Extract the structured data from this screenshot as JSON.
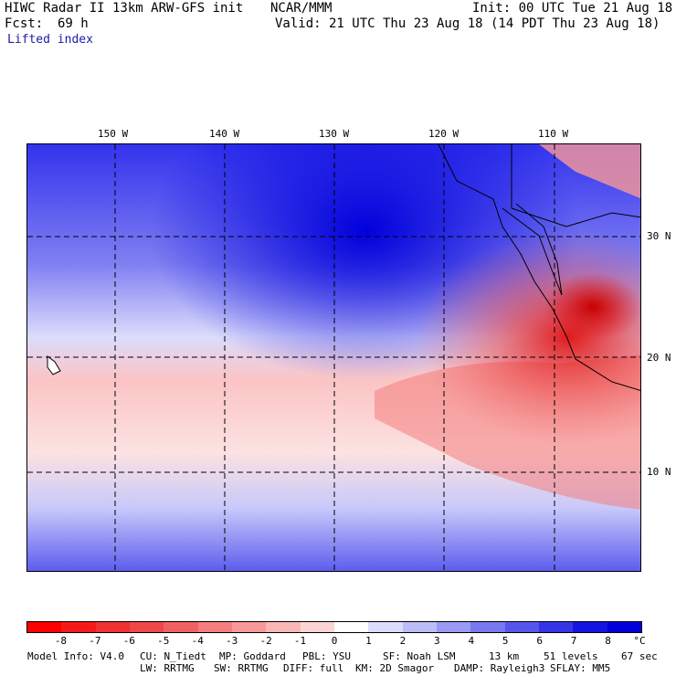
{
  "header": {
    "model": "HIWC Radar II 13km ARW-GFS init",
    "org": "NCAR/MMM",
    "init": "Init: 00 UTC Tue 21 Aug 18",
    "fcst_label": "Fcst:",
    "fcst_value": "69 h",
    "valid": "Valid: 21 UTC Thu 23 Aug 18 (14 PDT Thu 23 Aug 18)",
    "field": "Lifted index"
  },
  "axes": {
    "longitudes": [
      "150 W",
      "140 W",
      "130 W",
      "120 W",
      "110 W"
    ],
    "latitudes": [
      "30 N",
      "20 N",
      "10 N"
    ]
  },
  "colorbar": {
    "unit": "°C",
    "ticks": [
      "-8",
      "-7",
      "-6",
      "-5",
      "-4",
      "-3",
      "-2",
      "-1",
      "0",
      "1",
      "2",
      "3",
      "4",
      "5",
      "6",
      "7",
      "8"
    ],
    "colors": [
      "#ff0000",
      "#f51a1a",
      "#f03232",
      "#ee4848",
      "#f06262",
      "#f47d7d",
      "#f89999",
      "#fbb6b6",
      "#fdd4d4",
      "#ffffff",
      "#dcdcfc",
      "#bcbcf8",
      "#9a9af4",
      "#7878ef",
      "#5656ea",
      "#3535e6",
      "#1515e2",
      "#0000dc"
    ]
  },
  "footer": {
    "line1": [
      "Model Info: V4.0",
      "CU: N_Tiedt",
      "MP: Goddard",
      "PBL: YSU",
      "SF: Noah LSM",
      "13 km",
      "51 levels",
      "67 sec"
    ],
    "line2": [
      "LW: RRTMG",
      "SW: RRTMG",
      "DIFF: full",
      "KM: 2D Smagor",
      "DAMP: Rayleigh3",
      "SFLAY: MM5"
    ]
  }
}
